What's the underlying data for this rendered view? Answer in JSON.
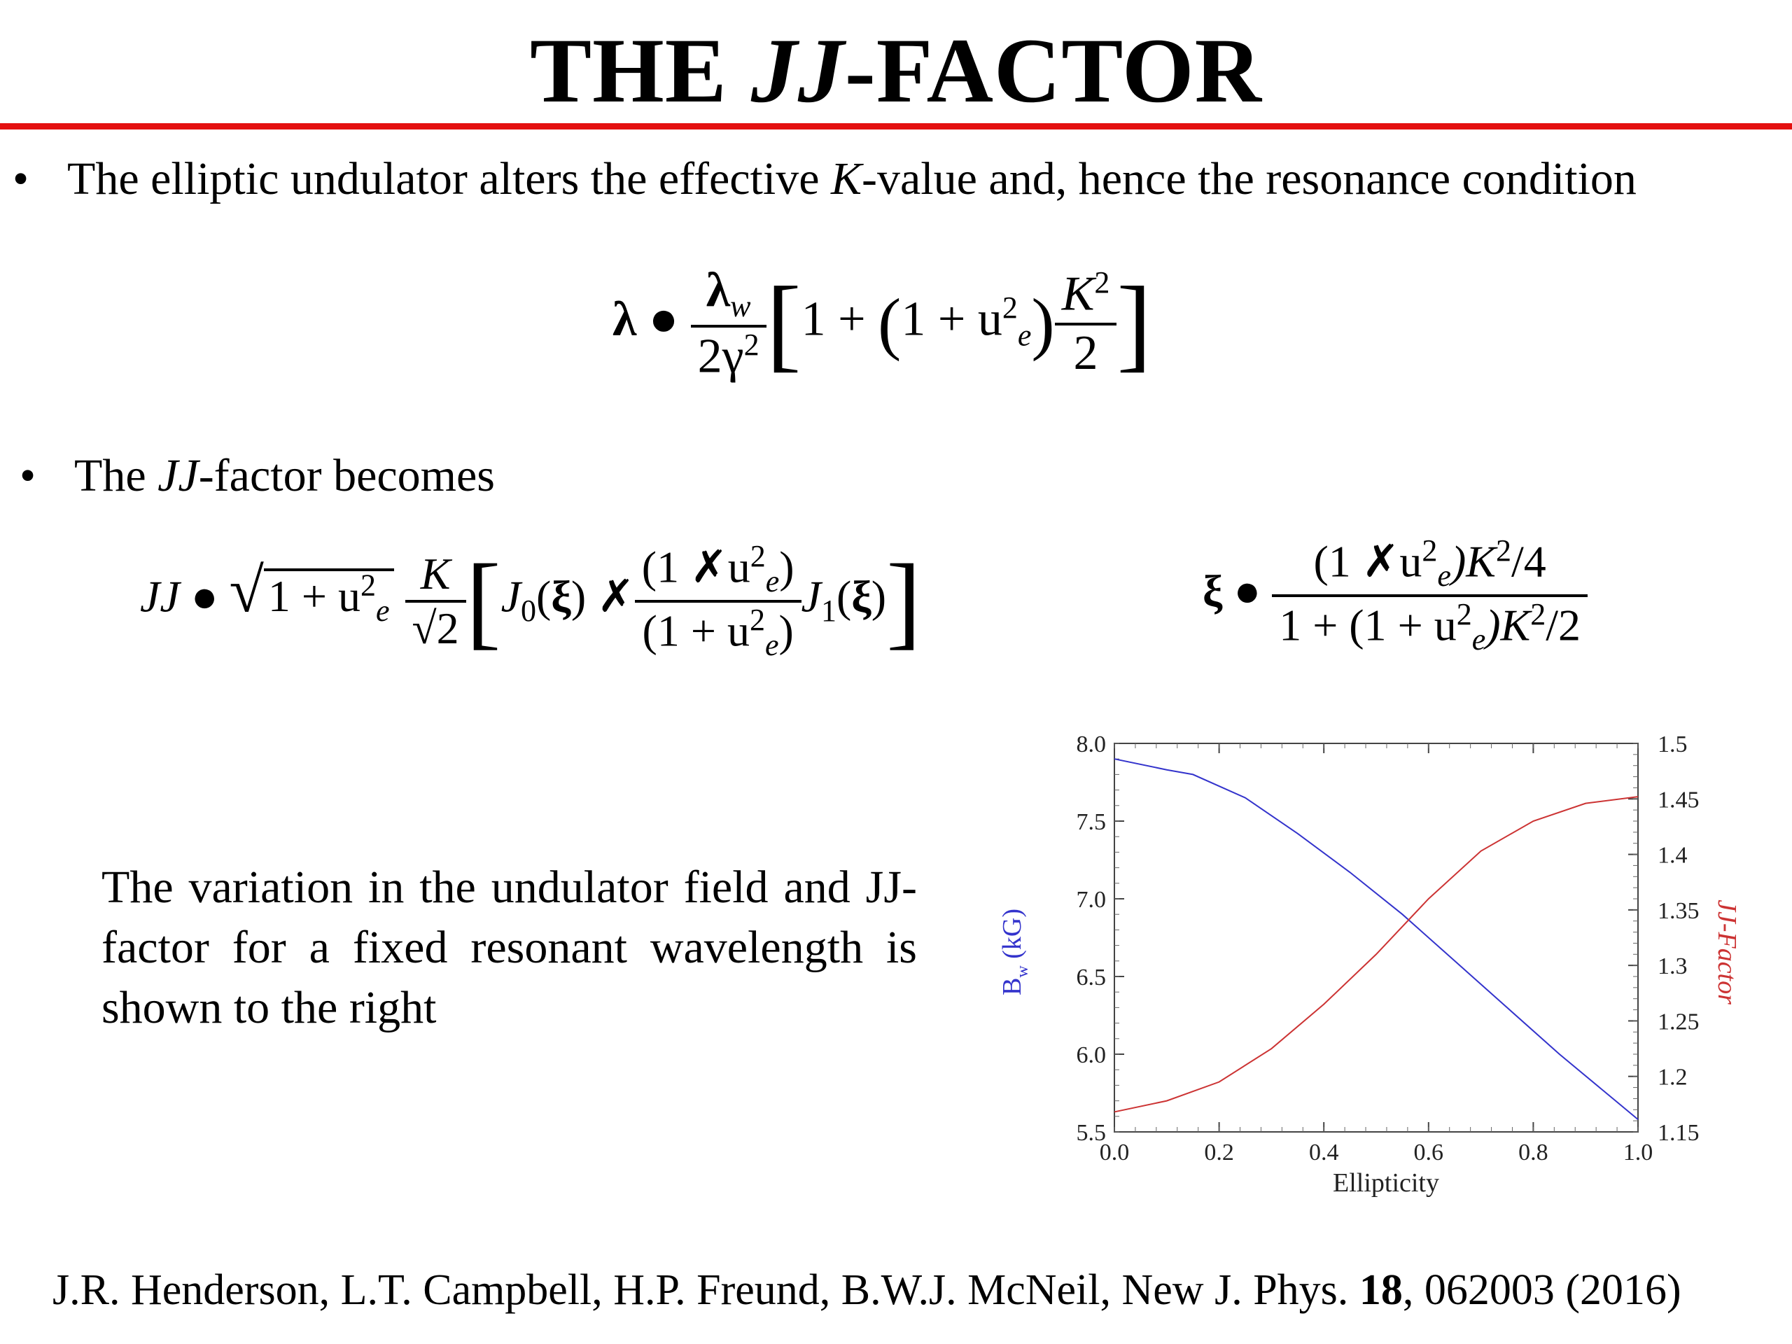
{
  "title": {
    "prefix": "THE ",
    "italic": "JJ",
    "suffix": "-FACTOR"
  },
  "colors": {
    "rule": "#e41010",
    "bw_series": "#3333cc",
    "jj_series": "#cc3333"
  },
  "bullets": [
    {
      "pre": "The elliptic undulator alters the effective ",
      "italic": "K",
      "post": "-value and, hence the resonance condition"
    },
    {
      "pre": "The ",
      "italic": "JJ",
      "post": "-factor becomes"
    }
  ],
  "equations": {
    "resonance": {
      "lhs": "λ",
      "eq": "●",
      "num_sym": "λ",
      "num_sub": "w",
      "den": "2γ",
      "den_sup": "2",
      "one_plus": "1 + ",
      "paren_open": "(",
      "inner": "1 + u",
      "u_sup": "2",
      "u_sub": "e",
      "paren_close": ")",
      "frac_num": "K",
      "frac_num_sup": "2",
      "frac_den": "2"
    },
    "jj": {
      "lhs": "JJ",
      "eq": "●",
      "root": "1 + u",
      "root_sup": "2",
      "root_sub": "e",
      "K": "K",
      "sqrt2": "√2",
      "J0": "J",
      "J0_sub": "0",
      "arg": "ξ",
      "minus": "✗",
      "num": "(1 ✗u",
      "num_sup": "2",
      "num_sub": "e",
      "num_close": ")",
      "den": "(1 + u",
      "den_sup": "2",
      "den_sub": "e",
      "den_close": ")",
      "J1": "J",
      "J1_sub": "1"
    },
    "xi": {
      "lhs": "ξ",
      "eq": "●",
      "num": "(1 ✗u",
      "num_sup": "2",
      "num_sub": "e",
      "num_tail": ")K",
      "num_tail_sup": "2",
      "num_tail2": "/4",
      "den": "1 + (1 + u",
      "den_sup": "2",
      "den_sub": "e",
      "den_tail": ")K",
      "den_tail_sup": "2",
      "den_tail2": "/2"
    }
  },
  "description": "The variation in the undulator field and JJ-factor for a fixed resonant wavelength is shown to the right",
  "citation": {
    "text": "J.R. Henderson, L.T. Campbell, H.P. Freund, B.W.J. McNeil, New J. Phys. ",
    "volume": "18",
    "rest": ", 062003 (2016)"
  },
  "chart_data": {
    "type": "line",
    "xlabel": "Ellipticity",
    "ylabel_left": "B",
    "ylabel_left_sub": "w",
    "ylabel_left_unit": " (kG)",
    "ylabel_right": "JJ-Factor",
    "xlim": [
      0.0,
      1.0
    ],
    "ylim_left": [
      5.5,
      8.0
    ],
    "ylim_right": [
      1.15,
      1.5
    ],
    "x_ticks": [
      "0.0",
      "0.2",
      "0.4",
      "0.6",
      "0.8",
      "1.0"
    ],
    "y_left_ticks": [
      "5.5",
      "6.0",
      "6.5",
      "7.0",
      "7.5",
      "8.0"
    ],
    "y_right_ticks": [
      "1.15",
      "1.2",
      "1.25",
      "1.3",
      "1.35",
      "1.4",
      "1.45",
      "1.5"
    ],
    "grid": false,
    "series": [
      {
        "axis": "left",
        "x": [
          0.0,
          0.1,
          0.15,
          0.25,
          0.35,
          0.45,
          0.55,
          0.65,
          0.75,
          0.85,
          0.95,
          1.0
        ],
        "values": [
          7.9,
          7.83,
          7.8,
          7.65,
          7.42,
          7.17,
          6.9,
          6.6,
          6.3,
          6.0,
          5.72,
          5.58
        ]
      },
      {
        "axis": "right",
        "x": [
          0.0,
          0.1,
          0.2,
          0.3,
          0.4,
          0.5,
          0.6,
          0.7,
          0.8,
          0.9,
          1.0
        ],
        "values": [
          1.168,
          1.178,
          1.195,
          1.225,
          1.265,
          1.31,
          1.36,
          1.403,
          1.43,
          1.446,
          1.452
        ]
      }
    ]
  }
}
